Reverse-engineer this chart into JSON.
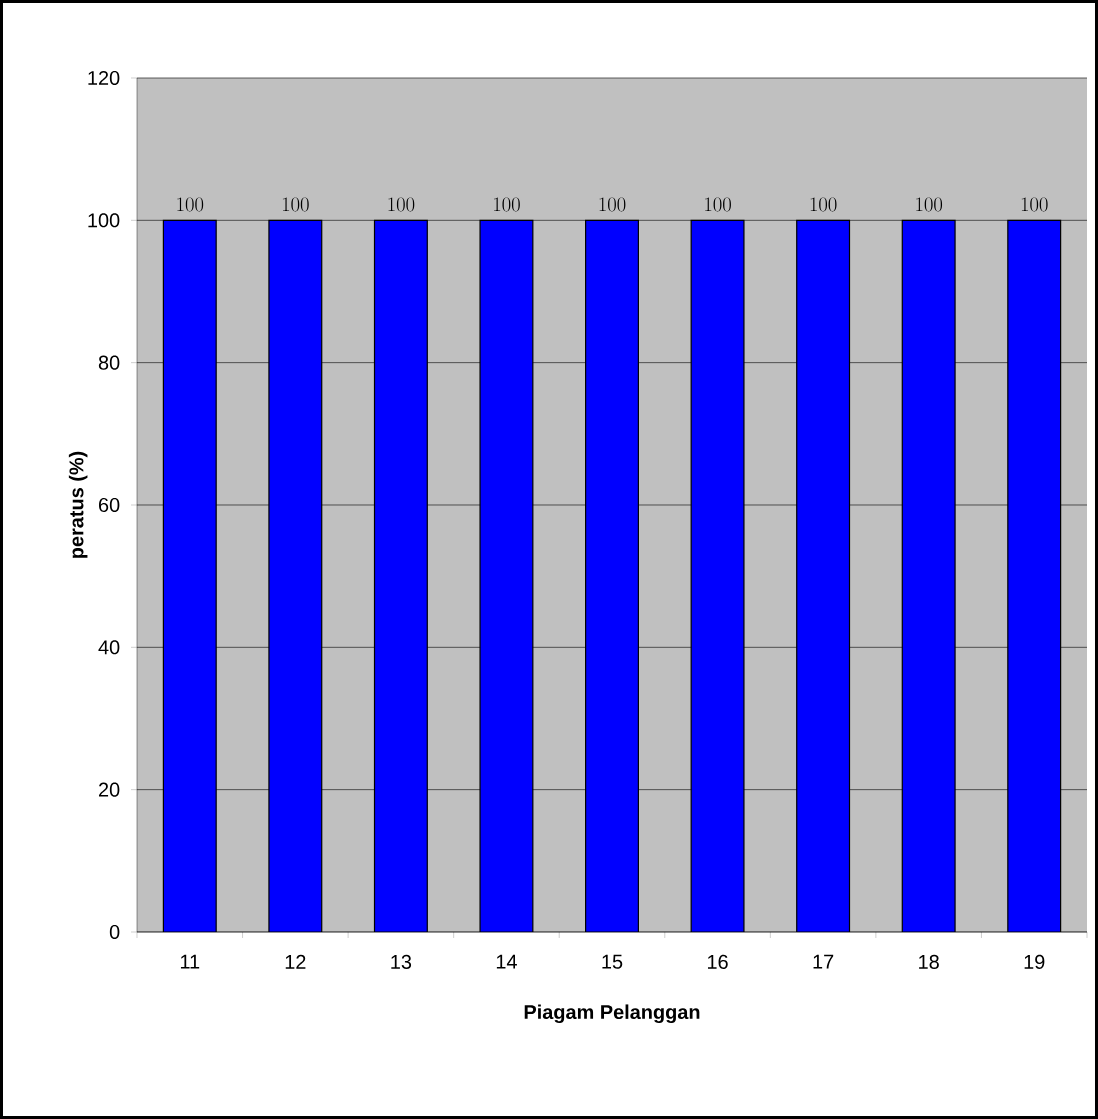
{
  "chart_data": {
    "type": "bar",
    "xlabel": "Piagam Pelanggan",
    "ylabel": "peratus (%)",
    "categories": [
      "11",
      "12",
      "13",
      "14",
      "15",
      "16",
      "17",
      "18",
      "19"
    ],
    "values": [
      100,
      100,
      100,
      100,
      100,
      100,
      100,
      100,
      100
    ],
    "color": "#0000ff",
    "ylim": [
      0,
      120
    ],
    "yticks": [
      0,
      20,
      40,
      60,
      80,
      100,
      120
    ],
    "grid": "y",
    "data_labels": true
  }
}
